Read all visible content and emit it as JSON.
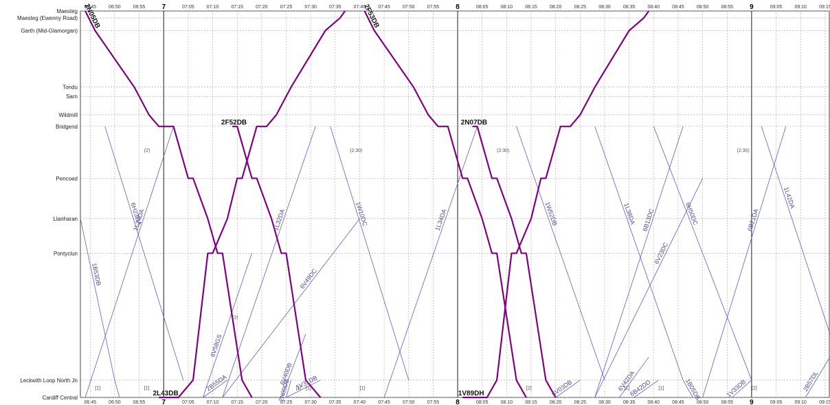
{
  "chart_data": {
    "type": "line",
    "title": "",
    "stations": [
      {
        "name": "Maesteg",
        "pos": 0.0
      },
      {
        "name": "Maesteg (Ewenny Road)",
        "pos": 0.6
      },
      {
        "name": "Garth (Mid-Glamorgan)",
        "pos": 1.7
      },
      {
        "name": "Tondu",
        "pos": 6.6
      },
      {
        "name": "Sarn",
        "pos": 7.4
      },
      {
        "name": "Wildmill",
        "pos": 9.0
      },
      {
        "name": "Bridgend",
        "pos": 10.0
      },
      {
        "name": "Pencoed",
        "pos": 14.5
      },
      {
        "name": "Llanharan",
        "pos": 18.0
      },
      {
        "name": "Pontyclun",
        "pos": 21.0
      },
      {
        "name": "Leckwith Loop North Jn",
        "pos": 32.0
      },
      {
        "name": "Cardiff Central",
        "pos": 33.5
      }
    ],
    "time_range": [
      403,
      556
    ],
    "hour_marks": [
      {
        "t": 420,
        "label": "7"
      },
      {
        "t": 480,
        "label": "8"
      },
      {
        "t": 540,
        "label": "9"
      }
    ],
    "tick_labels": [
      "06:45",
      "06:50",
      "06:55",
      "07:05",
      "07:10",
      "07:15",
      "07:20",
      "07:25",
      "07:30",
      "07:35",
      "07:40",
      "07:45",
      "07:50",
      "07:55",
      "08:05",
      "08:10",
      "08:15",
      "08:20",
      "08:25",
      "08:30",
      "08:35",
      "08:40",
      "08:45",
      "08:50",
      "08:55",
      "09:05",
      "09:10",
      "09:15"
    ],
    "major_trains": [
      {
        "headcode": "2N05DB",
        "points": [
          [
            404,
            0
          ],
          [
            406,
            1.7
          ],
          [
            414,
            6.6
          ],
          [
            415,
            7.4
          ],
          [
            417,
            9.0
          ],
          [
            419,
            10
          ],
          [
            422,
            10
          ],
          [
            425,
            14.5
          ],
          [
            426,
            14.5
          ],
          [
            429,
            18
          ],
          [
            431,
            21
          ],
          [
            432,
            21
          ],
          [
            436,
            32
          ],
          [
            438,
            33.5
          ]
        ]
      },
      {
        "headcode": "2L43DB",
        "points": [
          [
            419,
            33.5
          ],
          [
            423,
            33.5
          ],
          [
            426,
            32
          ],
          [
            429,
            21
          ],
          [
            430,
            21
          ],
          [
            433,
            18
          ],
          [
            435,
            14.5
          ],
          [
            436,
            14.5
          ],
          [
            439,
            10
          ],
          [
            441,
            10
          ],
          [
            443,
            9.0
          ],
          [
            445,
            7.4
          ],
          [
            446,
            6.6
          ],
          [
            453,
            1.7
          ],
          [
            456,
            0.6
          ],
          [
            457,
            0
          ]
        ]
      },
      {
        "headcode": "2F53DB",
        "points": [
          [
            461,
            0
          ],
          [
            463,
            1.7
          ],
          [
            471,
            6.6
          ],
          [
            472,
            7.4
          ],
          [
            474,
            9.0
          ],
          [
            476,
            10
          ],
          [
            478,
            10
          ],
          [
            481,
            14.5
          ],
          [
            482,
            14.5
          ],
          [
            485,
            18
          ],
          [
            487,
            21
          ],
          [
            488,
            21
          ],
          [
            492,
            32
          ],
          [
            494,
            33.5
          ]
        ]
      },
      {
        "headcode": "2F52DB",
        "points": [
          [
            434,
            10
          ],
          [
            435,
            10
          ],
          [
            438,
            14.5
          ],
          [
            439,
            14.5
          ],
          [
            442,
            18
          ],
          [
            444,
            21
          ],
          [
            445,
            21
          ],
          [
            449,
            32
          ],
          [
            452,
            33.5
          ]
        ]
      },
      {
        "headcode": "1V89DH",
        "points": [
          [
            481,
            33.5
          ],
          [
            486,
            33.5
          ],
          [
            488,
            32
          ],
          [
            491,
            21
          ],
          [
            492,
            21
          ],
          [
            495,
            18
          ],
          [
            497,
            14.5
          ],
          [
            498,
            14.5
          ],
          [
            501,
            10
          ],
          [
            503,
            10
          ],
          [
            505,
            9.0
          ],
          [
            507,
            7.4
          ],
          [
            508,
            6.6
          ],
          [
            515,
            1.7
          ],
          [
            518,
            0.6
          ],
          [
            519,
            0
          ]
        ]
      },
      {
        "headcode": "2N07DB",
        "points": [
          [
            483,
            10
          ],
          [
            484,
            10
          ],
          [
            487,
            14.5
          ],
          [
            488,
            14.5
          ],
          [
            491,
            18
          ],
          [
            493,
            21
          ],
          [
            494,
            21
          ],
          [
            498,
            32
          ],
          [
            500,
            33.5
          ]
        ]
      }
    ],
    "minor_trains": [
      {
        "headcode": "6H23DA",
        "points": [
          [
            408,
            10
          ],
          [
            424,
            32
          ]
        ]
      },
      {
        "headcode": "1L24DA",
        "points": [
          [
            422,
            10
          ],
          [
            404,
            33.5
          ]
        ]
      },
      {
        "headcode": "1L32DA",
        "points": [
          [
            451,
            10
          ],
          [
            432,
            33.5
          ]
        ]
      },
      {
        "headcode": "1W10DC",
        "points": [
          [
            454,
            10
          ],
          [
            470,
            32
          ]
        ]
      },
      {
        "headcode": "1L34DA",
        "points": [
          [
            484,
            10
          ],
          [
            465,
            33.5
          ]
        ]
      },
      {
        "headcode": "1W52DB",
        "points": [
          [
            492,
            10
          ],
          [
            510,
            32
          ]
        ]
      },
      {
        "headcode": "1L38DA",
        "points": [
          [
            508,
            10
          ],
          [
            526,
            32
          ]
        ]
      },
      {
        "headcode": "6H50DC",
        "points": [
          [
            520,
            10
          ],
          [
            540,
            32
          ]
        ]
      },
      {
        "headcode": "6B13DC",
        "points": [
          [
            526,
            10
          ],
          [
            508,
            33.5
          ]
        ]
      },
      {
        "headcode": "1L42DA",
        "points": [
          [
            542,
            10
          ],
          [
            556,
            28
          ]
        ]
      },
      {
        "headcode": "6B21DA",
        "points": [
          [
            547,
            10
          ],
          [
            530,
            33.5
          ]
        ]
      },
      {
        "headcode": "6V49DC",
        "points": [
          [
            460,
            18
          ],
          [
            432,
            33.5
          ]
        ]
      },
      {
        "headcode": "6V23DC",
        "points": [
          [
            530,
            14.5
          ],
          [
            508,
            33.5
          ]
        ]
      },
      {
        "headcode": "1B53DB",
        "points": [
          [
            403,
            18
          ],
          [
            410,
            32
          ],
          [
            411,
            33.5
          ]
        ]
      },
      {
        "headcode": "1V31DB",
        "points": [
          [
            452,
            32
          ],
          [
            445,
            33.5
          ]
        ]
      },
      {
        "headcode": "2B55DA",
        "points": [
          [
            433,
            32
          ],
          [
            428,
            33.5
          ]
        ]
      },
      {
        "headcode": "6V58GS",
        "points": [
          [
            428,
            33.5
          ],
          [
            438,
            21
          ]
        ]
      },
      {
        "headcode": "2N09DB",
        "points": [
          [
            445,
            33.5
          ],
          [
            446,
            32
          ]
        ]
      },
      {
        "headcode": "6V40DB",
        "points": [
          [
            444,
            33.5
          ],
          [
            449,
            28
          ]
        ]
      },
      {
        "headcode": "6V03DB",
        "points": [
          [
            500,
            33.5
          ],
          [
            505,
            32
          ]
        ]
      },
      {
        "headcode": "6V42DA",
        "points": [
          [
            513,
            33.5
          ],
          [
            519,
            30
          ]
        ]
      },
      {
        "headcode": "6B42DD",
        "points": [
          [
            516,
            33.5
          ],
          [
            521,
            32
          ]
        ]
      },
      {
        "headcode": "1B05DB",
        "points": [
          [
            528,
            33.5
          ],
          [
            526,
            32
          ]
        ]
      },
      {
        "headcode": "1V33DB",
        "points": [
          [
            536,
            33.5
          ],
          [
            540,
            32
          ]
        ]
      },
      {
        "headcode": "2B57DL",
        "points": [
          [
            551,
            33.5
          ],
          [
            556,
            30
          ]
        ]
      }
    ],
    "notes": [
      "(2)",
      "(2:30)",
      "(2:30)",
      "(2:30)",
      "(2)",
      "[1]",
      "[1]",
      "[1]",
      "[1]",
      "[2]",
      "[1]",
      "[1]",
      "[2]",
      "[1]"
    ],
    "colors": {
      "major": "#800080",
      "minor": "#5b5bd6",
      "grid": "#999999",
      "hour_line": "#000000"
    }
  }
}
